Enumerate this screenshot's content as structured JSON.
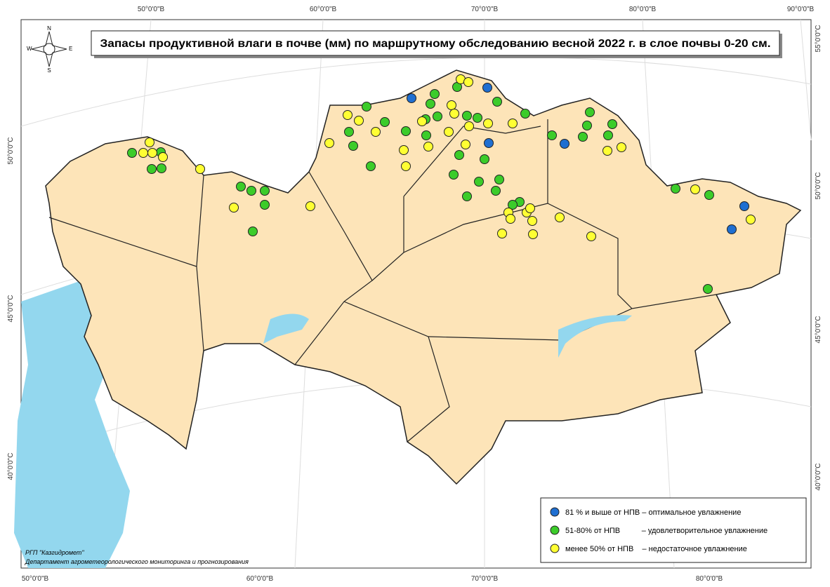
{
  "title": "Запасы продуктивной влаги в почве (мм) по маршрутному обследованию весной 2022 г. в слое почвы 0-20 см.",
  "legend": [
    "81 % и выше от НПВ – оптимальное увлажнение",
    "51-80% от НПВ          – удовлетворительное увлажнение",
    "менее 50% от НПВ    – недостаточное увлажнение"
  ],
  "credits": [
    "РГП \"Казгидромет\"",
    "Департамент агрометеорологического мониторинга и прогнозирования"
  ],
  "compass": [
    "N",
    "E",
    "S",
    "W"
  ],
  "graticule": {
    "top": [
      "50°0'0\"В",
      "60°0'0\"В",
      "70°0'0\"В",
      "80°0'0\"В",
      "90°0'0\"В"
    ],
    "bottom": [
      "50°0'0\"В",
      "60°0'0\"В",
      "70°0'0\"В",
      "80°0'0\"В"
    ],
    "left": [
      "50°0'0\"С",
      "45°0'0\"С",
      "40°0'0\"С"
    ],
    "right": [
      "55°0'0\"С",
      "50°0'0\"С",
      "45°0'0\"С",
      "40°0'0\"С"
    ]
  }
}
